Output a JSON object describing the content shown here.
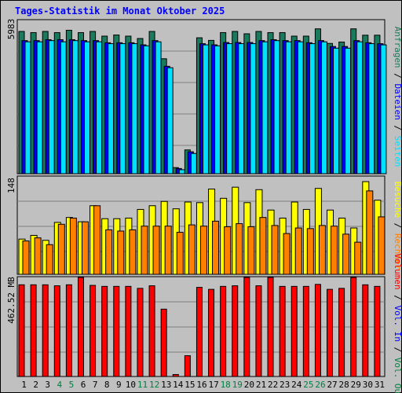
{
  "title": "Tages-Statistik im Monat Oktober 2025",
  "chart_data": [
    {
      "type": "bar",
      "panel": "requests",
      "y_axis_max_label": "5983",
      "ylim": [
        0,
        6540
      ],
      "grid": true,
      "categories": [
        "1",
        "2",
        "3",
        "4",
        "5",
        "6",
        "7",
        "8",
        "9",
        "10",
        "11",
        "12",
        "13",
        "14",
        "15",
        "16",
        "17",
        "18",
        "19",
        "20",
        "21",
        "22",
        "23",
        "24",
        "25",
        "26",
        "27",
        "28",
        "29",
        "30",
        "31"
      ],
      "series": [
        {
          "name": "Anfragen",
          "color": "#1a7a5e",
          "values": [
            6040,
            5990,
            6040,
            5990,
            6090,
            5990,
            6040,
            5840,
            5890,
            5840,
            5740,
            6040,
            4880,
            260,
            1010,
            5770,
            5660,
            5990,
            6040,
            5940,
            6040,
            5990,
            5990,
            5840,
            5840,
            6150,
            5530,
            5590,
            6150,
            5880,
            5880
          ]
        },
        {
          "name": "Dateien",
          "color": "#0000ff",
          "values": [
            5650,
            5650,
            5690,
            5690,
            5690,
            5650,
            5650,
            5560,
            5560,
            5560,
            5470,
            5650,
            4560,
            220,
            930,
            5520,
            5470,
            5570,
            5570,
            5570,
            5650,
            5690,
            5650,
            5650,
            5560,
            5650,
            5400,
            5400,
            5650,
            5560,
            5520
          ]
        },
        {
          "name": "Seiten",
          "color": "#00e0ff",
          "values": [
            5600,
            5600,
            5650,
            5600,
            5650,
            5600,
            5600,
            5520,
            5520,
            5520,
            5430,
            5600,
            4500,
            170,
            860,
            5470,
            5430,
            5520,
            5520,
            5520,
            5600,
            5650,
            5600,
            5600,
            5520,
            5600,
            5330,
            5330,
            5600,
            5520,
            5470
          ]
        }
      ],
      "legend": "right side, vertical"
    },
    {
      "type": "bar",
      "panel": "visits",
      "y_axis_max_label": "148",
      "ylim": [
        0,
        159
      ],
      "grid": true,
      "categories": [
        "1",
        "2",
        "3",
        "4",
        "5",
        "6",
        "7",
        "8",
        "9",
        "10",
        "11",
        "12",
        "13",
        "14",
        "15",
        "16",
        "17",
        "18",
        "19",
        "20",
        "21",
        "22",
        "23",
        "24",
        "25",
        "26",
        "27",
        "28",
        "29",
        "30",
        "31"
      ],
      "series": [
        {
          "name": "Besuche",
          "color": "#ffff00",
          "values": [
            57,
            63,
            55,
            84,
            92,
            85,
            111,
            90,
            90,
            91,
            105,
            111,
            118,
            106,
            117,
            116,
            138,
            123,
            141,
            116,
            137,
            104,
            91,
            117,
            105,
            139,
            104,
            91,
            75,
            150,
            120
          ]
        },
        {
          "name": "Rechner",
          "color": "#ff8000",
          "values": [
            54,
            59,
            48,
            81,
            91,
            85,
            111,
            72,
            70,
            72,
            78,
            78,
            78,
            68,
            80,
            78,
            86,
            77,
            82,
            77,
            92,
            79,
            66,
            75,
            74,
            79,
            78,
            65,
            52,
            135,
            93
          ]
        }
      ],
      "legend": "right side, vertical"
    },
    {
      "type": "bar",
      "panel": "volume",
      "y_axis_max_label": "462.52 MB",
      "ylim": [
        0,
        504
      ],
      "grid": true,
      "categories": [
        "1",
        "2",
        "3",
        "4",
        "5",
        "6",
        "7",
        "8",
        "9",
        "10",
        "11",
        "12",
        "13",
        "14",
        "15",
        "16",
        "17",
        "18",
        "19",
        "20",
        "21",
        "22",
        "23",
        "24",
        "25",
        "26",
        "27",
        "28",
        "29",
        "30",
        "31"
      ],
      "series": [
        {
          "name": "Volumen",
          "color": "#ff0000",
          "values": [
            463,
            463,
            463,
            458,
            463,
            500,
            460,
            455,
            455,
            455,
            445,
            458,
            340,
            10,
            105,
            450,
            440,
            455,
            458,
            500,
            458,
            500,
            455,
            455,
            455,
            465,
            440,
            445,
            500,
            463,
            455
          ]
        }
      ],
      "legend": "right side, vertical"
    }
  ],
  "legend_panel_1": [
    "Anfragen",
    "Dateien",
    "Seiten"
  ],
  "legend_panel_2": [
    "Besuche",
    "Rechner"
  ],
  "legend_panel_3": [
    "Volumen",
    "Vol. In",
    "Vol. Out"
  ],
  "legend_separator": "/",
  "colors": {
    "background": "#c0c0c0",
    "plot": "#c0c0c0",
    "title": "#0000ff",
    "weekend_day_label": "#008040",
    "day_label": "#000000",
    "vol_in": "#0000ff",
    "vol_out": "#008040",
    "separator": "#000000"
  },
  "weekend_days": [
    "4",
    "5",
    "11",
    "12",
    "18",
    "19",
    "25",
    "26"
  ]
}
